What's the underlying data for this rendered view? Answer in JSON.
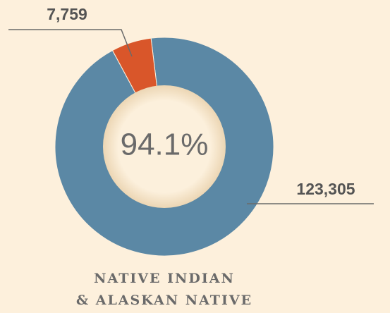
{
  "chart_data": {
    "type": "donut",
    "title": [
      "NATIVE INDIAN",
      "& ALASKAN NATIVE"
    ],
    "center_label": "94.1%",
    "categories": [
      null,
      null
    ],
    "values": [
      123305,
      7759
    ],
    "value_labels": [
      "123,305",
      "7,759"
    ],
    "colors": [
      "#5b88a5",
      "#d9562a"
    ]
  }
}
